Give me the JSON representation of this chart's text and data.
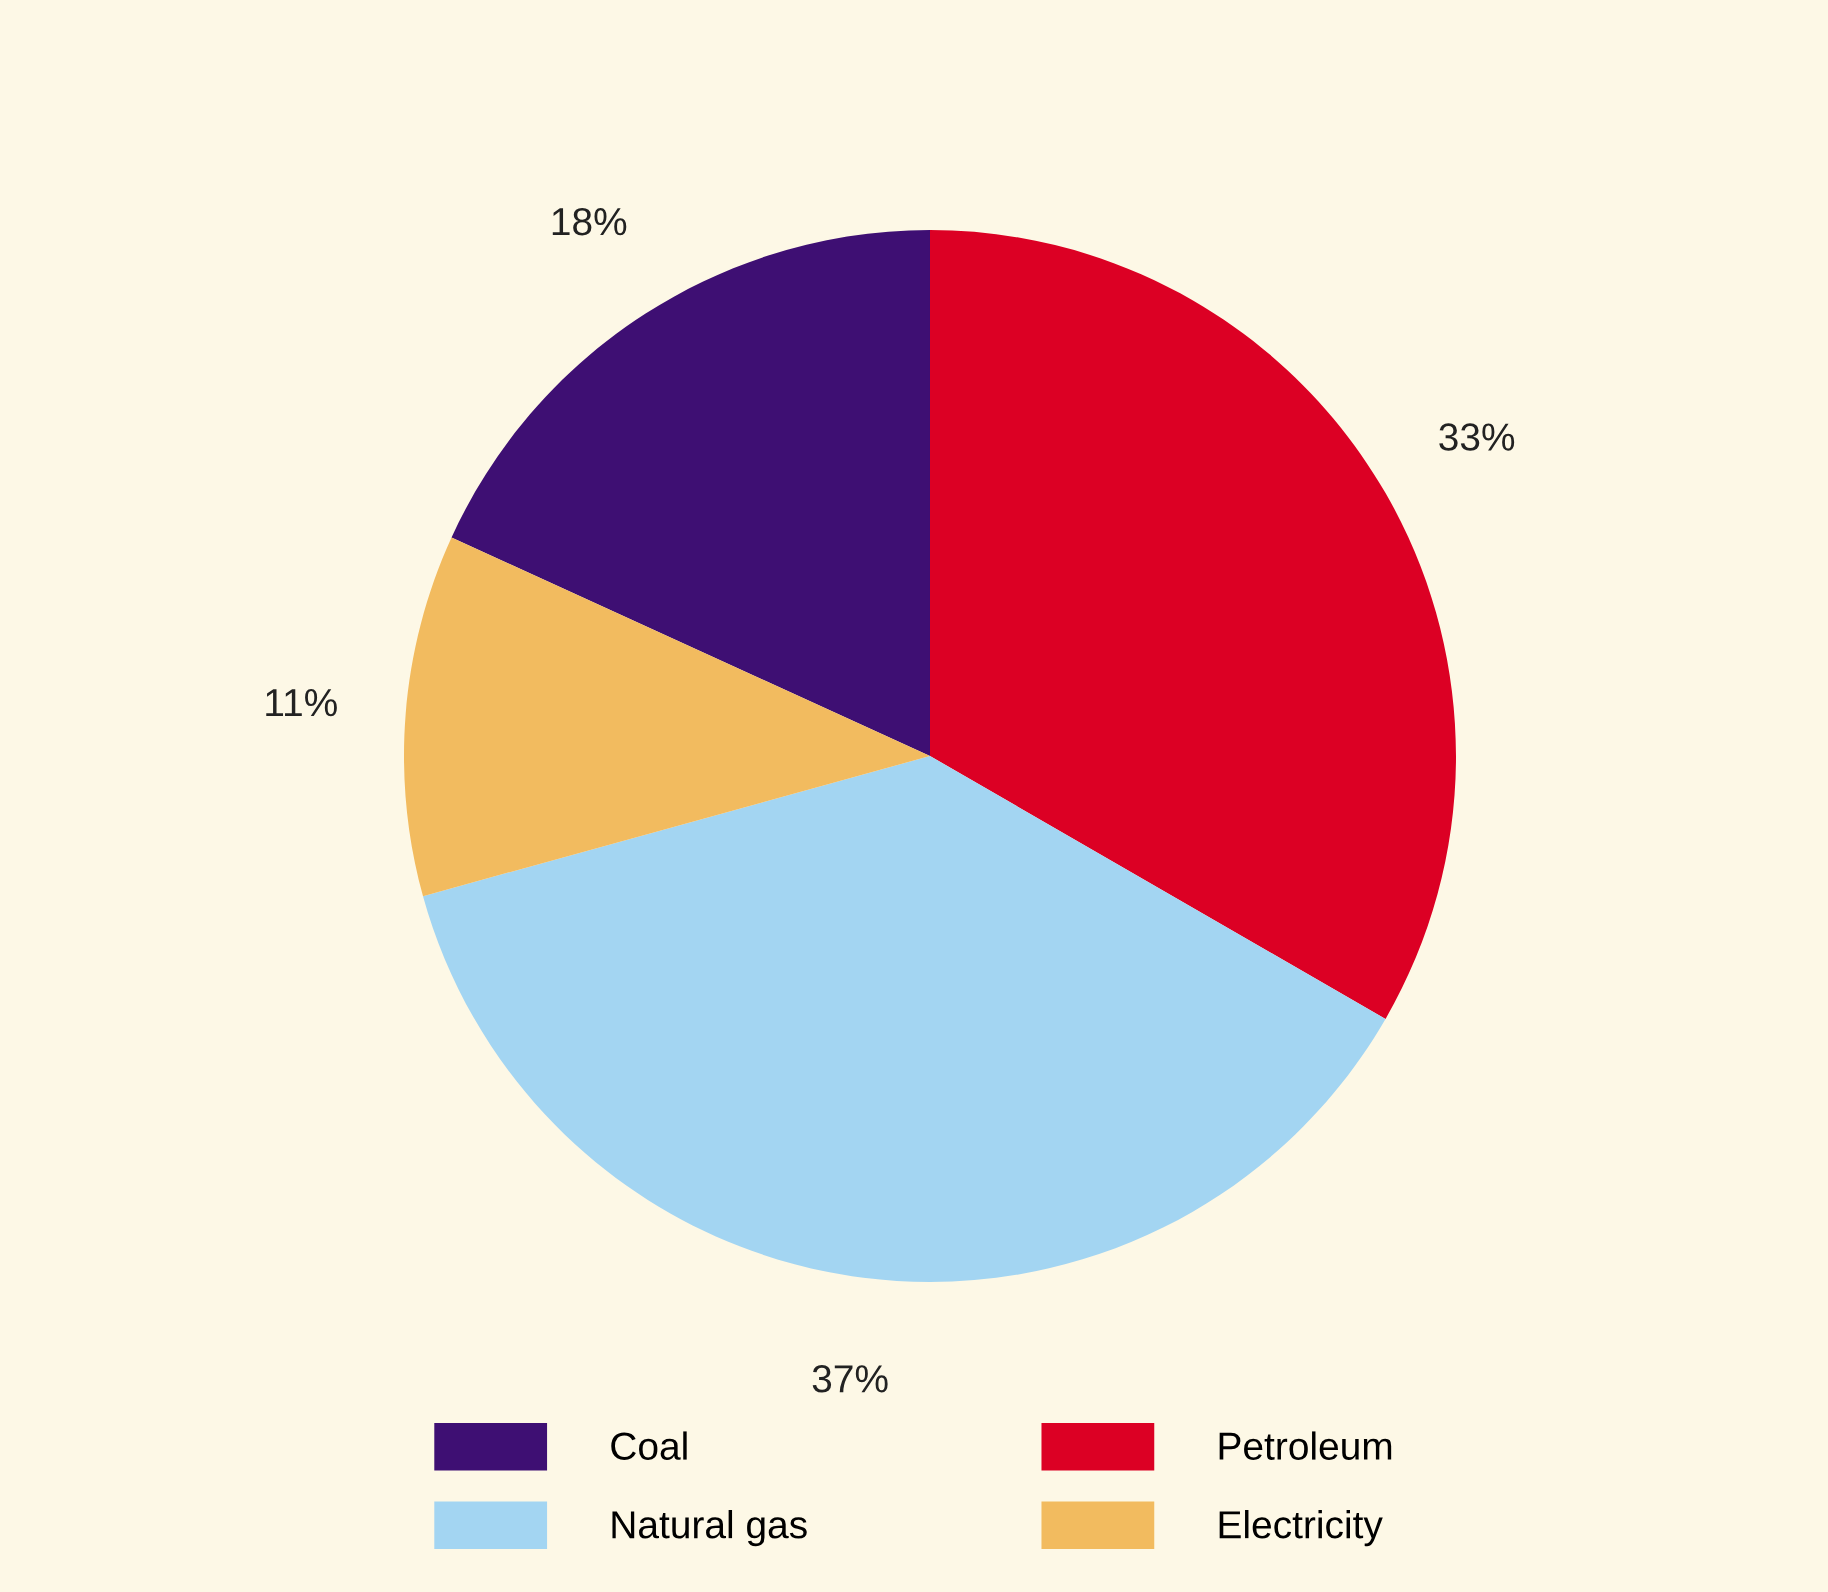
{
  "chart_data": {
    "type": "pie",
    "categories": [
      "Coal",
      "Petroleum",
      "Natural gas",
      "Electricity"
    ],
    "values": [
      18,
      33,
      37,
      11
    ],
    "colors": [
      "#3e0f73",
      "#dc0024",
      "#a3d5f2",
      "#f2bb5f"
    ],
    "value_labels": [
      "18%",
      "33%",
      "37%",
      "11%"
    ],
    "legend": "bottom"
  }
}
